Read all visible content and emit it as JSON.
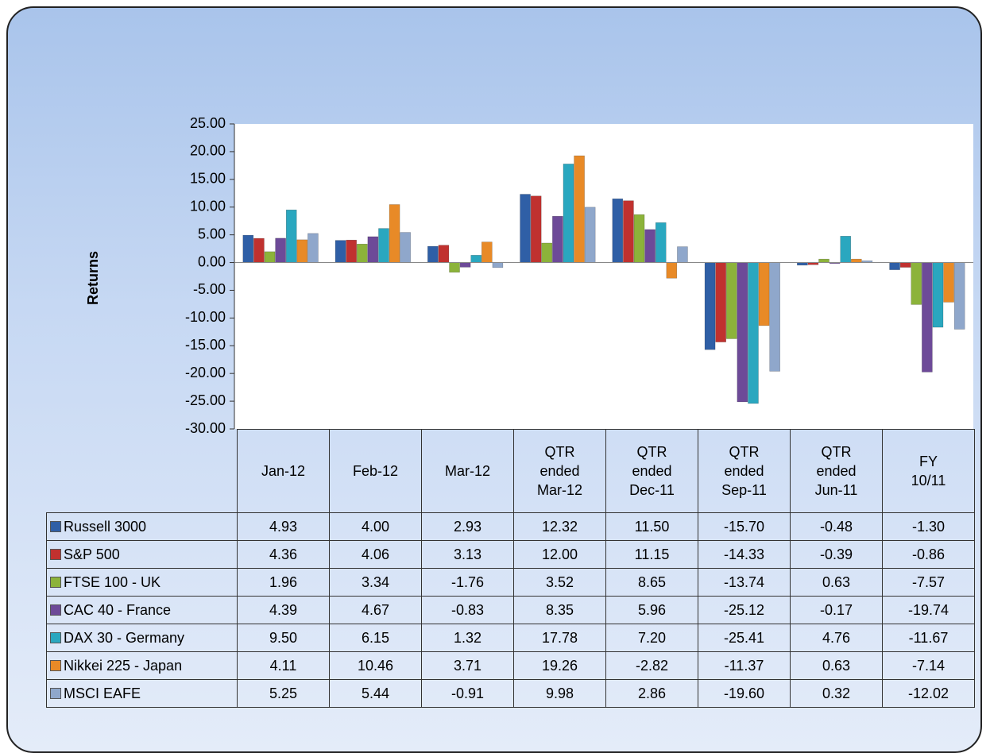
{
  "chart_data": {
    "type": "bar",
    "y_label": "Returns",
    "categories": [
      "Jan-12",
      "Feb-12",
      "Mar-12",
      "QTR ended Mar-12",
      "QTR ended Dec-11",
      "QTR ended Sep-11",
      "QTR ended Jun-11",
      "FY 10/11"
    ],
    "ylim": [
      -30,
      25
    ],
    "yticks": [
      {
        "value": 25,
        "label": "25.00"
      },
      {
        "value": 20,
        "label": "20.00"
      },
      {
        "value": 15,
        "label": "15.00"
      },
      {
        "value": 10,
        "label": "10.00"
      },
      {
        "value": 5,
        "label": "5.00"
      },
      {
        "value": 0,
        "label": "0.00"
      },
      {
        "value": -5,
        "label": "-5.00"
      },
      {
        "value": -10,
        "label": "-10.00"
      },
      {
        "value": -15,
        "label": "-15.00"
      },
      {
        "value": -20,
        "label": "-20.00"
      },
      {
        "value": -25,
        "label": "-25.00"
      },
      {
        "value": -30,
        "label": "-30.00"
      }
    ],
    "grid": false,
    "series": [
      {
        "name": "Russell 3000",
        "color": "#2f5fa6",
        "values": [
          4.93,
          4,
          2.93,
          12.32,
          11.5,
          -15.7,
          -0.48,
          -1.3
        ],
        "value_labels": [
          "4.93",
          "4.00",
          "2.93",
          "12.32",
          "11.50",
          "-15.70",
          "-0.48",
          "-1.30"
        ]
      },
      {
        "name": "S&P 500",
        "color": "#c0312f",
        "values": [
          4.36,
          4.06,
          3.13,
          12,
          11.15,
          -14.33,
          -0.39,
          -0.86
        ],
        "value_labels": [
          "4.36",
          "4.06",
          "3.13",
          "12.00",
          "11.15",
          "-14.33",
          "-0.39",
          "-0.86"
        ]
      },
      {
        "name": "FTSE 100 - UK",
        "color": "#8cb33a",
        "values": [
          1.96,
          3.34,
          -1.76,
          3.52,
          8.65,
          -13.74,
          0.63,
          -7.57
        ],
        "value_labels": [
          "1.96",
          "3.34",
          "-1.76",
          "3.52",
          "8.65",
          "-13.74",
          "0.63",
          "-7.57"
        ]
      },
      {
        "name": "CAC 40 - France",
        "color": "#6d4a98",
        "values": [
          4.39,
          4.67,
          -0.83,
          8.35,
          5.96,
          -25.12,
          -0.17,
          -19.74
        ],
        "value_labels": [
          "4.39",
          "4.67",
          "-0.83",
          "8.35",
          "5.96",
          "-25.12",
          "-0.17",
          "-19.74"
        ]
      },
      {
        "name": "DAX 30 - Germany",
        "color": "#2aa7bf",
        "values": [
          9.5,
          6.15,
          1.32,
          17.78,
          7.2,
          -25.41,
          4.76,
          -11.67
        ],
        "value_labels": [
          "9.50",
          "6.15",
          "1.32",
          "17.78",
          "7.20",
          "-25.41",
          "4.76",
          "-11.67"
        ]
      },
      {
        "name": "Nikkei 225 - Japan",
        "color": "#e88a27",
        "values": [
          4.11,
          10.46,
          3.71,
          19.26,
          -2.82,
          -11.37,
          0.63,
          -7.14
        ],
        "value_labels": [
          "4.11",
          "10.46",
          "3.71",
          "19.26",
          "-2.82",
          "-11.37",
          "0.63",
          "-7.14"
        ]
      },
      {
        "name": "MSCI EAFE",
        "color": "#8fa7cb",
        "values": [
          5.25,
          5.44,
          -0.91,
          9.98,
          2.86,
          -19.6,
          0.32,
          -12.02
        ],
        "value_labels": [
          "5.25",
          "5.44",
          "-0.91",
          "9.98",
          "2.86",
          "-19.60",
          "0.32",
          "-12.02"
        ]
      }
    ]
  }
}
